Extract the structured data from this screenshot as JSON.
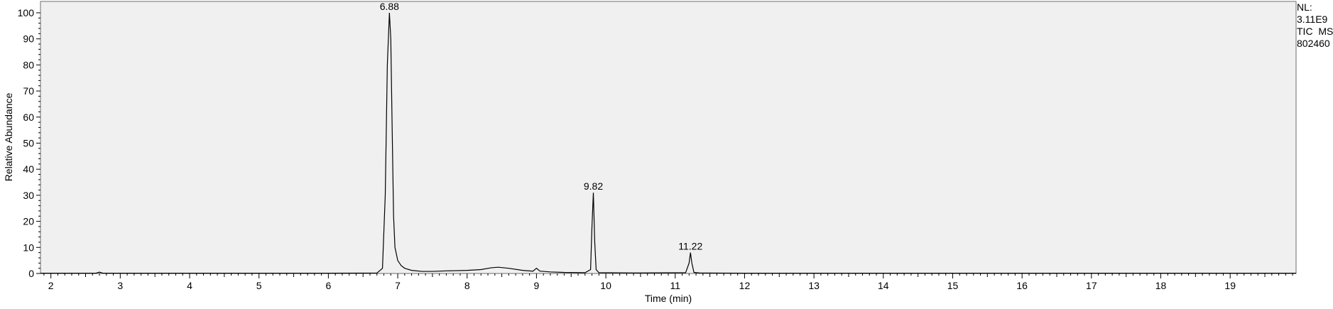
{
  "info": {
    "nl_label": "NL:",
    "nl_value": "3.11E9",
    "scan_filter": "TIC  MS",
    "sample_id": "802460"
  },
  "chart_data": {
    "type": "line",
    "title": "",
    "xlabel": "Time (min)",
    "ylabel": "Relative Abundance",
    "xlim": [
      1.85,
      19.95
    ],
    "ylim": [
      0,
      100
    ],
    "x_ticks": [
      2,
      3,
      4,
      5,
      6,
      7,
      8,
      9,
      10,
      11,
      12,
      13,
      14,
      15,
      16,
      17,
      18,
      19
    ],
    "y_ticks": [
      0,
      10,
      20,
      30,
      40,
      50,
      60,
      70,
      80,
      90,
      100
    ],
    "grid": false,
    "background_color": "#f0f0f0",
    "line_color": "#000000",
    "series": [
      {
        "x": [
          1.85,
          2.5,
          2.65,
          2.7,
          2.75,
          2.9,
          6.0,
          6.7,
          6.78,
          6.82,
          6.85,
          6.88,
          6.9,
          6.92,
          6.94,
          6.96,
          7.0,
          7.05,
          7.1,
          7.2,
          7.35,
          7.5,
          7.7,
          8.0,
          8.2,
          8.35,
          8.45,
          8.6,
          8.8,
          8.95,
          9.0,
          9.05,
          9.2,
          9.4,
          9.7,
          9.78,
          9.8,
          9.82,
          9.84,
          9.86,
          9.9,
          10.5,
          11.15,
          11.2,
          11.22,
          11.24,
          11.27,
          11.35,
          12.0,
          19.95
        ],
        "y": [
          0.1,
          0.1,
          0.1,
          0.5,
          0.1,
          0.1,
          0.1,
          0.15,
          2,
          30,
          80,
          100,
          90,
          55,
          22,
          10,
          5,
          3,
          2,
          1.2,
          0.8,
          0.8,
          1.0,
          1.2,
          1.5,
          2.2,
          2.4,
          2.0,
          1.2,
          0.9,
          2.0,
          0.9,
          0.6,
          0.4,
          0.3,
          1.5,
          18,
          31,
          12,
          1.5,
          0.3,
          0.2,
          0.3,
          4,
          8,
          4,
          0.4,
          0.2,
          0.1,
          0.1
        ]
      }
    ],
    "annotations": [
      {
        "label": "6.88",
        "x": 6.88,
        "y": 100
      },
      {
        "label": "9.82",
        "x": 9.82,
        "y": 31
      },
      {
        "label": "11.22",
        "x": 11.22,
        "y": 8
      }
    ]
  }
}
